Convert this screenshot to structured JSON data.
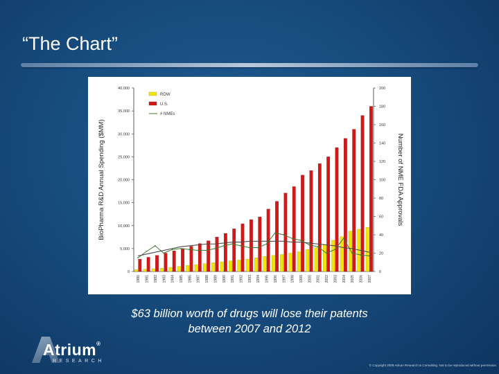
{
  "slide": {
    "title": "“The Chart”",
    "caption_line1": "$63 billion worth of drugs will lose their patents",
    "caption_line2": "between 2007 and 2012",
    "copyright": "© Copyright 2008 Atrium Research & Consulting. Not to be reproduced without permission",
    "logo": {
      "name": "Atrium",
      "sub": "RESEARCH",
      "mark": "®"
    },
    "colors": {
      "background": "#174c7e",
      "row": "#f2e600",
      "us": "#d21818",
      "nme": "#3f7a2e",
      "nme_trend": "#4a4a4a"
    }
  },
  "chart_data": {
    "type": "bar",
    "categories": [
      "1980",
      "1981",
      "1982",
      "1983",
      "1984",
      "1985",
      "1986",
      "1987",
      "1988",
      "1989",
      "1990",
      "1991",
      "1992",
      "1993",
      "1994",
      "1995",
      "1996",
      "1997",
      "1998",
      "1999",
      "2000",
      "2001",
      "2002",
      "2003",
      "2004",
      "2005",
      "2006",
      "2007"
    ],
    "x_tick_labels": [
      "1980",
      "1981",
      "1982",
      "1983",
      "1984",
      "1985",
      "1986",
      "1987",
      "1988",
      "1989",
      "1990",
      "1991",
      "1992",
      "1993",
      "1994",
      "1995",
      "1996",
      "1997",
      "1998",
      "1999",
      "2000",
      "2001",
      "2002",
      "2003",
      "2004",
      "2005",
      "2006",
      "2007"
    ],
    "series": [
      {
        "name": "ROW",
        "kind": "bar",
        "axis": "left",
        "values": [
          400,
          500,
          600,
          700,
          900,
          1100,
          1300,
          1500,
          1700,
          1900,
          2100,
          2300,
          2500,
          2700,
          3000,
          3300,
          3500,
          3700,
          4000,
          4300,
          4800,
          5200,
          5800,
          6800,
          7600,
          8800,
          9200,
          9600
        ]
      },
      {
        "name": "U.S.",
        "kind": "bar",
        "axis": "left",
        "values": [
          2700,
          3100,
          3500,
          4000,
          4500,
          5000,
          5500,
          6100,
          6700,
          7500,
          8300,
          9300,
          10400,
          11300,
          11900,
          13600,
          15300,
          17100,
          18500,
          21000,
          22000,
          23500,
          25000,
          27000,
          29000,
          31000,
          34000,
          36000
        ]
      },
      {
        "name": "# NMEs",
        "kind": "line",
        "axis": "right",
        "values": [
          15,
          22,
          28,
          20,
          24,
          25,
          24,
          23,
          23,
          25,
          28,
          30,
          28,
          26,
          26,
          30,
          42,
          40,
          36,
          34,
          29,
          27,
          20,
          24,
          36,
          20,
          18,
          17
        ]
      }
    ],
    "trendline": {
      "axis": "right",
      "values": [
        17,
        19,
        21,
        23,
        25,
        27,
        28,
        29,
        30,
        30,
        31,
        32,
        32,
        33,
        33,
        33,
        33,
        33,
        32,
        32,
        31,
        30,
        29,
        28,
        26,
        25,
        23,
        21
      ]
    },
    "left_axis": {
      "label": "BioPharma R&D Annual Spending ($MM)",
      "range": [
        0,
        40000
      ],
      "ticks": [
        0,
        5000,
        10000,
        15000,
        20000,
        25000,
        30000,
        35000,
        40000
      ],
      "tick_labels": [
        "0",
        "5,000",
        "10,000",
        "15,000",
        "20,000",
        "25,000",
        "30,000",
        "35,000",
        "40,000"
      ]
    },
    "right_axis": {
      "label": "Number of NME FDA Approvals",
      "range": [
        0,
        200
      ],
      "ticks": [
        0,
        20,
        40,
        60,
        80,
        100,
        120,
        140,
        160,
        180,
        200
      ],
      "tick_labels": [
        "0",
        "20",
        "40",
        "60",
        "80",
        "100",
        "120",
        "140",
        "160",
        "180",
        "200"
      ]
    },
    "legend": {
      "position": "top-left",
      "items": [
        "ROW",
        "U.S.",
        "# NMEs"
      ]
    },
    "grid": false
  }
}
